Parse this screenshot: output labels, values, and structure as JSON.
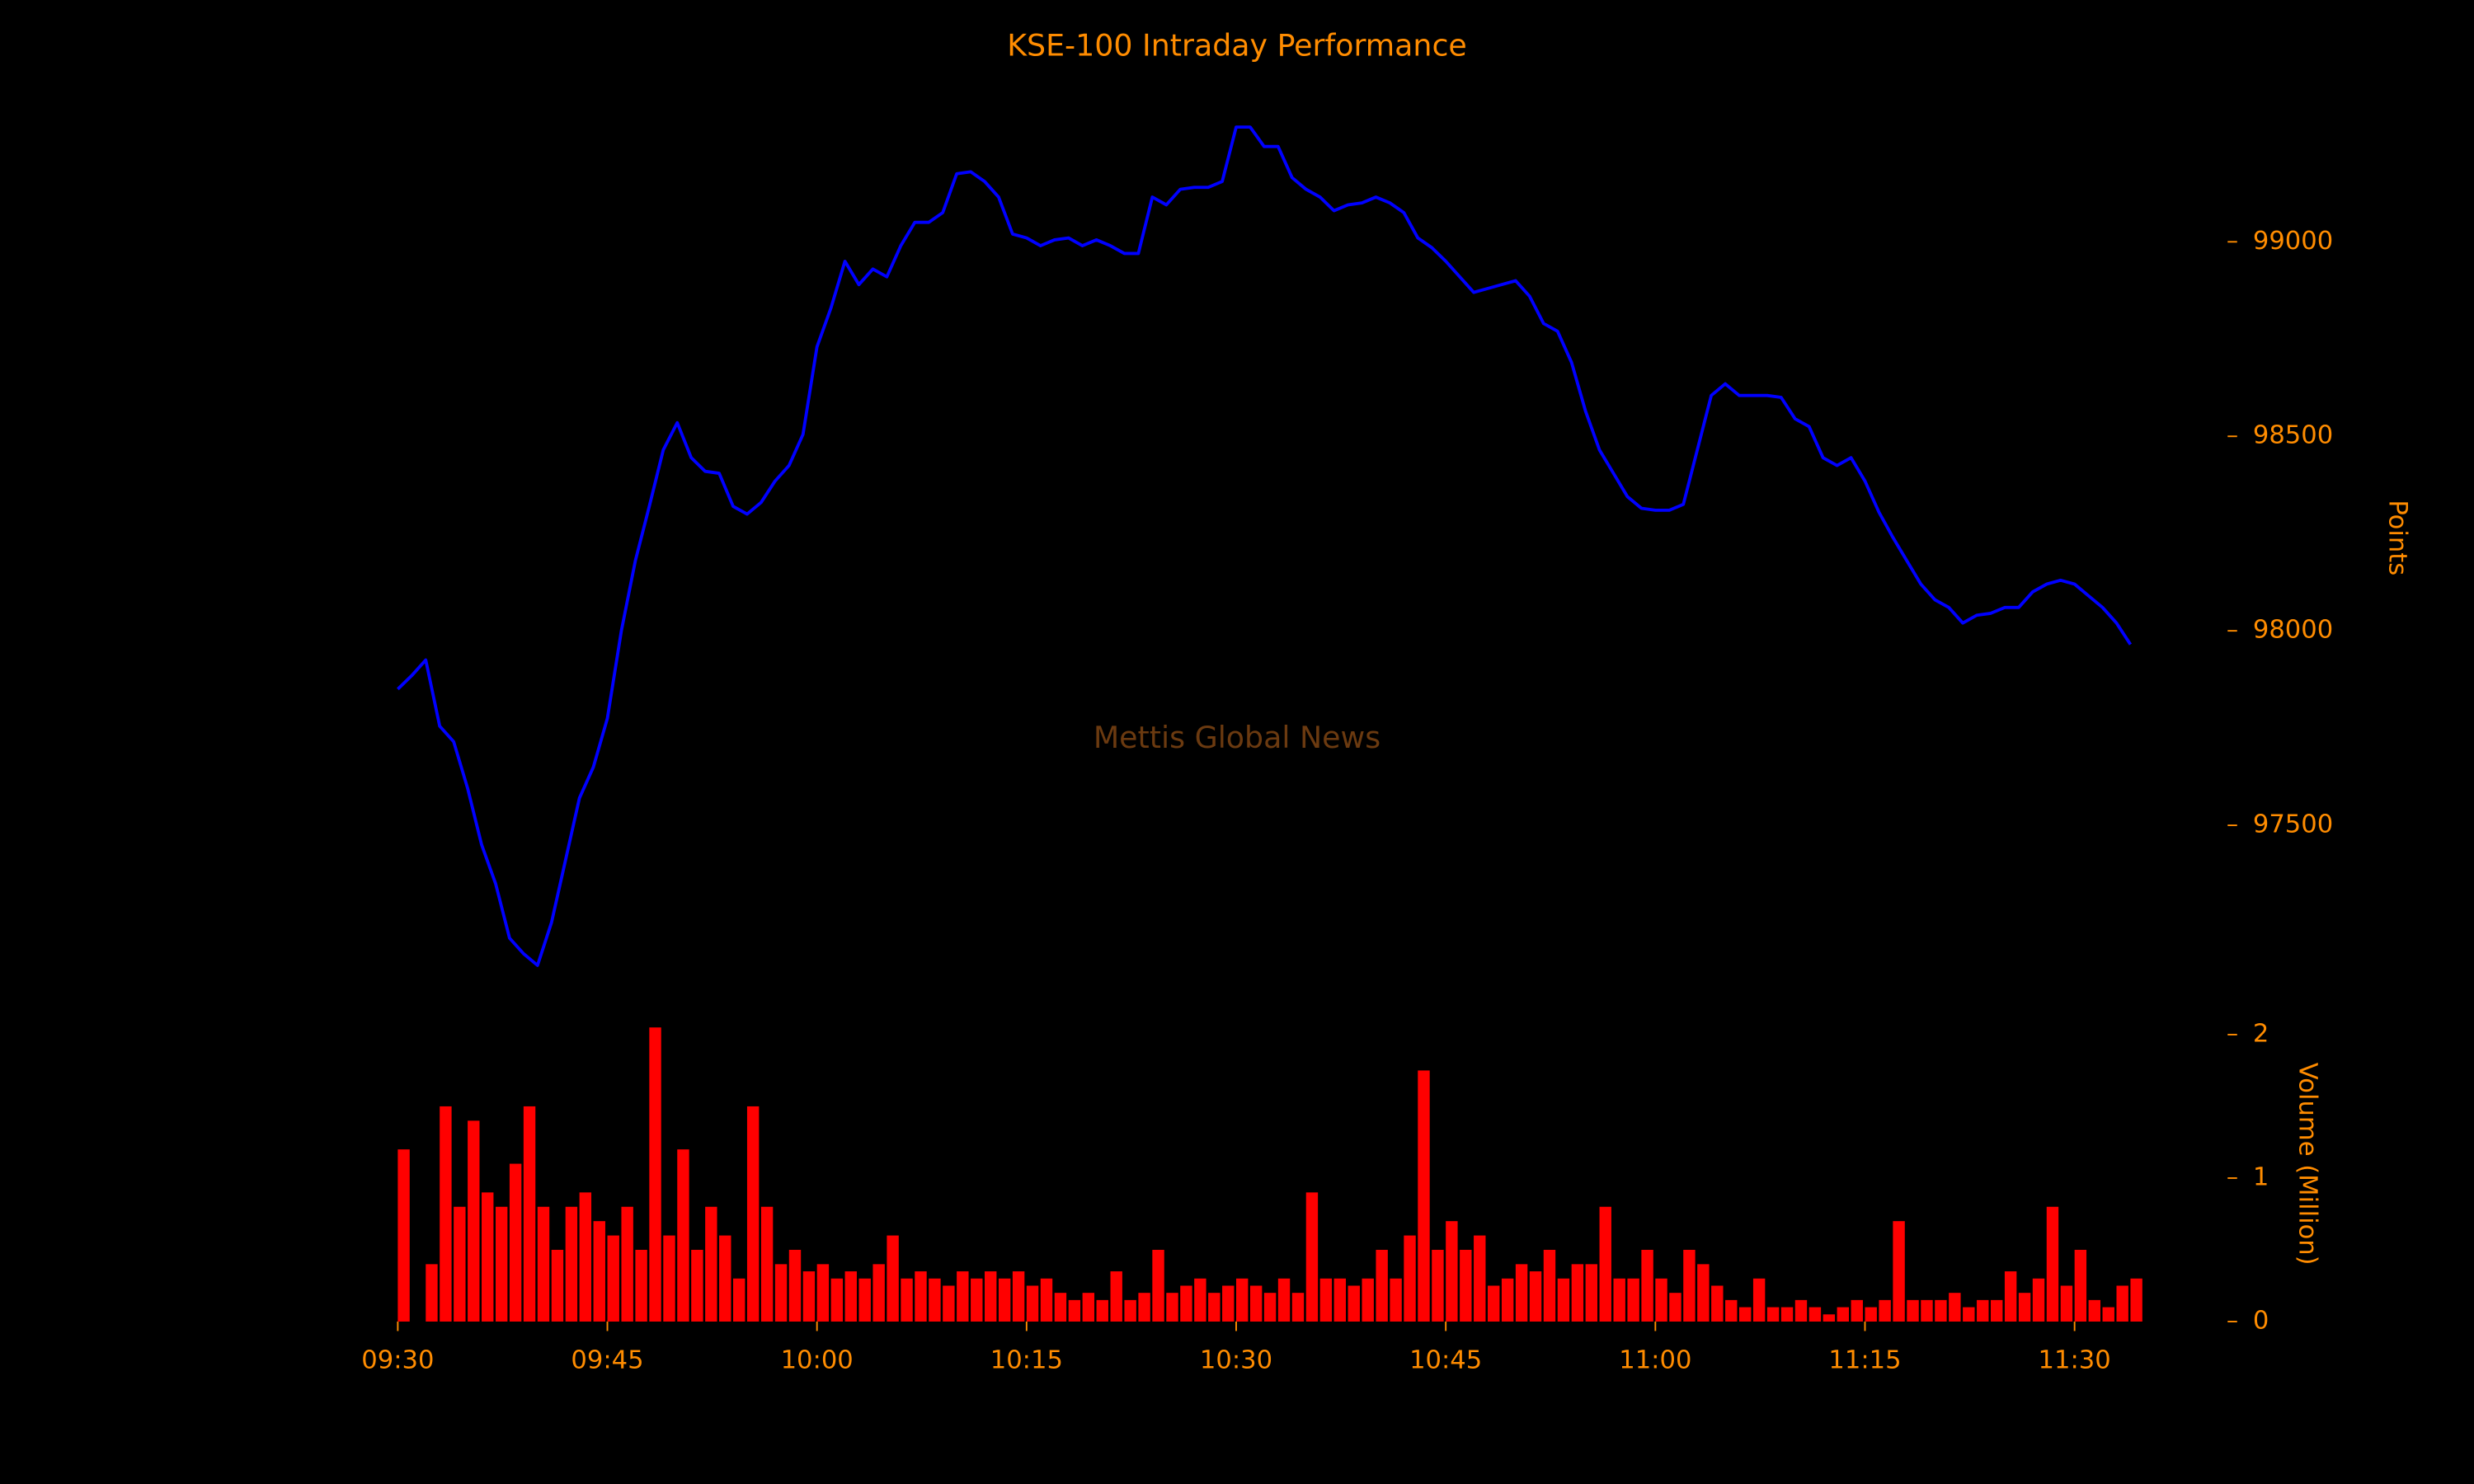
{
  "chart_data": [
    {
      "type": "line",
      "title": "KSE-100 Intraday Performance",
      "watermark": "Mettis Global News",
      "y_label": "Points",
      "color": "#0000ff",
      "x": [
        "09:30",
        "09:31",
        "09:32",
        "09:33",
        "09:34",
        "09:35",
        "09:36",
        "09:37",
        "09:38",
        "09:39",
        "09:40",
        "09:41",
        "09:42",
        "09:43",
        "09:44",
        "09:45",
        "09:46",
        "09:47",
        "09:48",
        "09:49",
        "09:50",
        "09:51",
        "09:52",
        "09:53",
        "09:54",
        "09:55",
        "09:56",
        "09:57",
        "09:58",
        "09:59",
        "10:00",
        "10:01",
        "10:02",
        "10:03",
        "10:04",
        "10:05",
        "10:06",
        "10:07",
        "10:08",
        "10:09",
        "10:10",
        "10:11",
        "10:12",
        "10:13",
        "10:14",
        "10:15",
        "10:16",
        "10:17",
        "10:18",
        "10:19",
        "10:20",
        "10:21",
        "10:22",
        "10:23",
        "10:24",
        "10:25",
        "10:26",
        "10:27",
        "10:28",
        "10:29",
        "10:30",
        "10:31",
        "10:32",
        "10:33",
        "10:34",
        "10:35",
        "10:36",
        "10:37",
        "10:38",
        "10:39",
        "10:40",
        "10:41",
        "10:42",
        "10:43",
        "10:44",
        "10:45",
        "10:46",
        "10:47",
        "10:48",
        "10:49",
        "10:50",
        "10:51",
        "10:52",
        "10:53",
        "10:54",
        "10:55",
        "10:56",
        "10:57",
        "10:58",
        "10:59",
        "11:00",
        "11:01",
        "11:02",
        "11:03",
        "11:04",
        "11:05",
        "11:06",
        "11:07",
        "11:08",
        "11:09",
        "11:10",
        "11:11",
        "11:12",
        "11:13",
        "11:14",
        "11:15",
        "11:16",
        "11:17",
        "11:18",
        "11:19",
        "11:20",
        "11:21",
        "11:22",
        "11:23",
        "11:24",
        "11:25",
        "11:26",
        "11:27",
        "11:28",
        "11:29",
        "11:30",
        "11:31",
        "11:32",
        "11:33",
        "11:34"
      ],
      "values": [
        97850,
        97885,
        97925,
        97755,
        97715,
        97595,
        97450,
        97350,
        97210,
        97170,
        97140,
        97250,
        97410,
        97570,
        97650,
        97775,
        98000,
        98180,
        98320,
        98465,
        98535,
        98445,
        98410,
        98405,
        98320,
        98300,
        98330,
        98385,
        98425,
        98505,
        98730,
        98830,
        98950,
        98890,
        98930,
        98910,
        98990,
        99050,
        99050,
        99075,
        99175,
        99180,
        99155,
        99115,
        99020,
        99010,
        98990,
        99005,
        99010,
        98990,
        99005,
        98990,
        98970,
        98970,
        99115,
        99095,
        99135,
        99140,
        99140,
        99155,
        99295,
        99295,
        99245,
        99245,
        99165,
        99135,
        99115,
        99080,
        99095,
        99100,
        99115,
        99100,
        99075,
        99010,
        98985,
        98950,
        98910,
        98870,
        98880,
        98890,
        98900,
        98860,
        98790,
        98770,
        98690,
        98565,
        98465,
        98405,
        98345,
        98315,
        98310,
        98310,
        98325,
        98465,
        98605,
        98635,
        98605,
        98605,
        98605,
        98600,
        98545,
        98525,
        98445,
        98425,
        98445,
        98385,
        98305,
        98240,
        98180,
        98120,
        98080,
        98060,
        98020,
        98040,
        98045,
        98060,
        98060,
        98100,
        98120,
        98130,
        98120,
        98090,
        98060,
        98020,
        97965
      ],
      "xlim": [
        "09:30",
        "11:35"
      ],
      "ylim": [
        97100,
        99350
      ],
      "yticks": [
        97500,
        98000,
        98500,
        99000
      ]
    },
    {
      "type": "bar",
      "y_label": "Volume (Million)",
      "color": "#ff0000",
      "x": [
        "09:30",
        "09:31",
        "09:32",
        "09:33",
        "09:34",
        "09:35",
        "09:36",
        "09:37",
        "09:38",
        "09:39",
        "09:40",
        "09:41",
        "09:42",
        "09:43",
        "09:44",
        "09:45",
        "09:46",
        "09:47",
        "09:48",
        "09:49",
        "09:50",
        "09:51",
        "09:52",
        "09:53",
        "09:54",
        "09:55",
        "09:56",
        "09:57",
        "09:58",
        "09:59",
        "10:00",
        "10:01",
        "10:02",
        "10:03",
        "10:04",
        "10:05",
        "10:06",
        "10:07",
        "10:08",
        "10:09",
        "10:10",
        "10:11",
        "10:12",
        "10:13",
        "10:14",
        "10:15",
        "10:16",
        "10:17",
        "10:18",
        "10:19",
        "10:20",
        "10:21",
        "10:22",
        "10:23",
        "10:24",
        "10:25",
        "10:26",
        "10:27",
        "10:28",
        "10:29",
        "10:30",
        "10:31",
        "10:32",
        "10:33",
        "10:34",
        "10:35",
        "10:36",
        "10:37",
        "10:38",
        "10:39",
        "10:40",
        "10:41",
        "10:42",
        "10:43",
        "10:44",
        "10:45",
        "10:46",
        "10:47",
        "10:48",
        "10:49",
        "10:50",
        "10:51",
        "10:52",
        "10:53",
        "10:54",
        "10:55",
        "10:56",
        "10:57",
        "10:58",
        "10:59",
        "11:00",
        "11:01",
        "11:02",
        "11:03",
        "11:04",
        "11:05",
        "11:06",
        "11:07",
        "11:08",
        "11:09",
        "11:10",
        "11:11",
        "11:12",
        "11:13",
        "11:14",
        "11:15",
        "11:16",
        "11:17",
        "11:18",
        "11:19",
        "11:20",
        "11:21",
        "11:22",
        "11:23",
        "11:24",
        "11:25",
        "11:26",
        "11:27",
        "11:28",
        "11:29",
        "11:30",
        "11:31",
        "11:32",
        "11:33",
        "11:34"
      ],
      "values": [
        1.2,
        0,
        0.4,
        1.5,
        0.8,
        1.4,
        0.9,
        0.8,
        1.1,
        1.5,
        0.8,
        0.5,
        0.8,
        0.9,
        0.7,
        0.6,
        0.8,
        0.5,
        2.05,
        0.6,
        1.2,
        0.5,
        0.8,
        0.6,
        0.3,
        1.5,
        0.8,
        0.4,
        0.5,
        0.35,
        0.4,
        0.3,
        0.35,
        0.3,
        0.4,
        0.6,
        0.3,
        0.35,
        0.3,
        0.25,
        0.35,
        0.3,
        0.35,
        0.3,
        0.35,
        0.25,
        0.3,
        0.2,
        0.15,
        0.2,
        0.15,
        0.35,
        0.15,
        0.2,
        0.5,
        0.2,
        0.25,
        0.3,
        0.2,
        0.25,
        0.3,
        0.25,
        0.2,
        0.3,
        0.2,
        0.9,
        0.3,
        0.3,
        0.25,
        0.3,
        0.5,
        0.3,
        0.6,
        1.75,
        0.5,
        0.7,
        0.5,
        0.6,
        0.25,
        0.3,
        0.4,
        0.35,
        0.5,
        0.3,
        0.4,
        0.4,
        0.8,
        0.3,
        0.3,
        0.5,
        0.3,
        0.2,
        0.5,
        0.4,
        0.25,
        0.15,
        0.1,
        0.3,
        0.1,
        0.1,
        0.15,
        0.1,
        0.05,
        0.1,
        0.15,
        0.1,
        0.15,
        0.7,
        0.15,
        0.15,
        0.15,
        0.2,
        0.1,
        0.15,
        0.15,
        0.35,
        0.2,
        0.3,
        0.8,
        0.25,
        0.5,
        0.15,
        0.1,
        0.25,
        0.3
      ],
      "xlim": [
        "09:30",
        "11:35"
      ],
      "ylim": [
        0,
        2.05
      ],
      "yticks": [
        0,
        1,
        2
      ],
      "xticks": [
        "09:30",
        "09:45",
        "10:00",
        "10:15",
        "10:30",
        "10:45",
        "11:00",
        "11:15",
        "11:30"
      ]
    }
  ]
}
